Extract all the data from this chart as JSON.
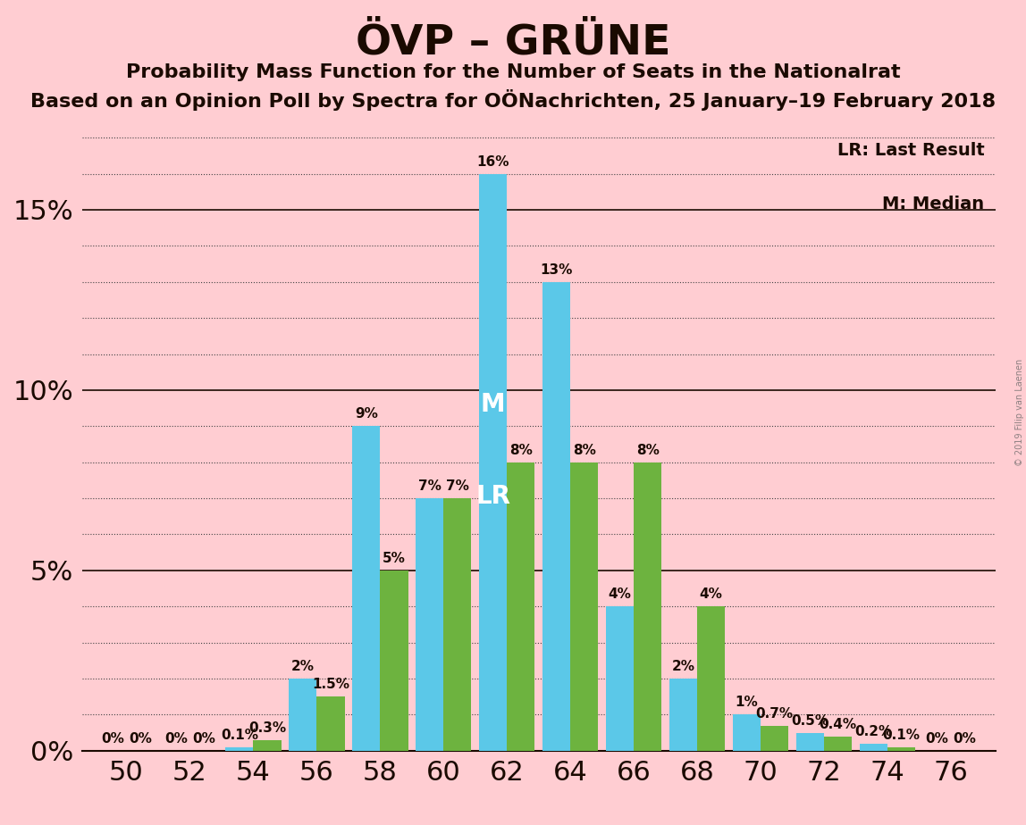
{
  "title": "ÖVP – GRÜNE",
  "subtitle1": "Probability Mass Function for the Number of Seats in the Nationalrat",
  "subtitle2": "Based on an Opinion Poll by Spectra for OÖNachrichten, 25 January–19 February 2018",
  "legend_lr": "LR: Last Result",
  "legend_m": "M: Median",
  "watermark": "© 2019 Filip van Laenen",
  "seats": [
    50,
    52,
    54,
    56,
    58,
    60,
    62,
    64,
    66,
    68,
    70,
    72,
    74,
    76
  ],
  "ovp_values": [
    0.0,
    0.0,
    0.1,
    2.0,
    9.0,
    7.0,
    16.0,
    13.0,
    4.0,
    2.0,
    1.0,
    0.5,
    0.2,
    0.0
  ],
  "grune_values": [
    0.0,
    0.0,
    0.3,
    1.5,
    5.0,
    7.0,
    8.0,
    8.0,
    8.0,
    4.0,
    0.7,
    0.4,
    0.1,
    0.0
  ],
  "ovp_color": "#5BC8E8",
  "grune_color": "#6DB33F",
  "background_color": "#FFCDD2",
  "text_color": "#1a0a00",
  "median_seat": 62,
  "lr_seat": 62,
  "ylim_max": 17.5,
  "bar_width": 0.44,
  "fig_width": 11.48,
  "fig_height": 9.24,
  "title_fontsize": 34,
  "subtitle1_fontsize": 16,
  "subtitle2_fontsize": 16,
  "axis_tick_fontsize": 22,
  "bar_label_fontsize": 11
}
